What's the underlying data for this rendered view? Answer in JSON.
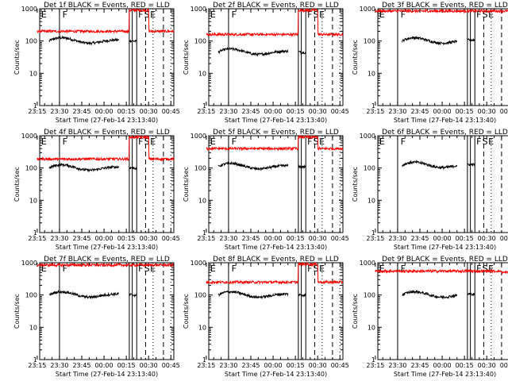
{
  "figure": {
    "x_tick_labels": [
      "23:15",
      "23:30",
      "23:45",
      "00:00",
      "00:15",
      "00:30",
      "00:45"
    ],
    "y_tick_labels": [
      "1",
      "10",
      "100",
      "1000"
    ],
    "x_label": "Start Time (27-Feb-14 23:13:40)",
    "y_label": "Counts/sec",
    "marker_labels": [
      "E",
      "F",
      "F",
      "S",
      "E"
    ],
    "colors": {
      "events": "#000000",
      "lld": "#ff0000",
      "axes": "#000000"
    }
  },
  "chart_data": [
    {
      "type": "line",
      "title": "Det 1f BLACK = Events, RED = LLD",
      "ylim": [
        1,
        1000
      ],
      "yscale": "log",
      "x_range_min": [
        1.67,
        92
      ],
      "series": [
        {
          "role": "events",
          "level": 100,
          "start": 8,
          "end": 67,
          "gap": [
            55,
            62
          ]
        },
        {
          "role": "lld",
          "level": 200,
          "start": 0,
          "end": 92,
          "burst": [
            62,
            75,
            900
          ]
        }
      ]
    },
    {
      "type": "line",
      "title": "Det 2f BLACK = Events, RED = LLD",
      "ylim": [
        1,
        1000
      ],
      "yscale": "log",
      "x_range_min": [
        1.67,
        92
      ],
      "series": [
        {
          "role": "events",
          "level": 45,
          "start": 8,
          "end": 67,
          "gap": [
            55,
            62
          ]
        },
        {
          "role": "lld",
          "level": 160,
          "start": 0,
          "end": 92,
          "burst": [
            62,
            75,
            900
          ]
        }
      ]
    },
    {
      "type": "line",
      "title": "Det 3f BLACK = Events, RED = LLD",
      "ylim": [
        1,
        1000
      ],
      "yscale": "log",
      "x_range_min": [
        1.67,
        92
      ],
      "series": [
        {
          "role": "events",
          "level": 100,
          "start": 18,
          "end": 67,
          "gap": [
            55,
            62
          ]
        },
        {
          "role": "lld",
          "level": 850,
          "start": 0,
          "end": 92
        }
      ]
    },
    {
      "type": "line",
      "title": "Det 4f BLACK = Events, RED = LLD",
      "ylim": [
        1,
        1000
      ],
      "yscale": "log",
      "x_range_min": [
        1.67,
        92
      ],
      "series": [
        {
          "role": "events",
          "level": 100,
          "start": 8,
          "end": 67,
          "gap": [
            55,
            62
          ]
        },
        {
          "role": "lld",
          "level": 190,
          "start": 0,
          "end": 92,
          "burst": [
            62,
            75,
            900
          ]
        }
      ]
    },
    {
      "type": "line",
      "title": "Det 5f BLACK = Events, RED = LLD",
      "ylim": [
        1,
        1000
      ],
      "yscale": "log",
      "x_range_min": [
        1.67,
        92
      ],
      "series": [
        {
          "role": "events",
          "level": 110,
          "start": 8,
          "end": 67,
          "gap": [
            55,
            62
          ]
        },
        {
          "role": "lld",
          "level": 400,
          "start": 0,
          "end": 92,
          "burst": [
            62,
            75,
            900
          ]
        }
      ]
    },
    {
      "type": "line",
      "title": "Det 6f BLACK = Events, RED = LLD",
      "ylim": [
        1,
        1000
      ],
      "yscale": "log",
      "x_range_min": [
        1.67,
        92
      ],
      "series": [
        {
          "role": "events",
          "level": 120,
          "start": 18,
          "end": 67,
          "gap": [
            55,
            62
          ]
        }
      ]
    },
    {
      "type": "line",
      "title": "Det 7f BLACK = Events, RED = LLD",
      "ylim": [
        1,
        1000
      ],
      "yscale": "log",
      "x_range_min": [
        1.67,
        92
      ],
      "series": [
        {
          "role": "events",
          "level": 100,
          "start": 8,
          "end": 67,
          "gap": [
            55,
            62
          ]
        },
        {
          "role": "lld",
          "level": 850,
          "start": 0,
          "end": 92
        }
      ]
    },
    {
      "type": "line",
      "title": "Det 8f BLACK = Events, RED = LLD",
      "ylim": [
        1,
        1000
      ],
      "yscale": "log",
      "x_range_min": [
        1.67,
        92
      ],
      "series": [
        {
          "role": "events",
          "level": 100,
          "start": 8,
          "end": 67,
          "gap": [
            55,
            62
          ]
        },
        {
          "role": "lld",
          "level": 250,
          "start": 0,
          "end": 92,
          "burst": [
            62,
            75,
            900
          ]
        }
      ]
    },
    {
      "type": "line",
      "title": "Det 9f BLACK = Events, RED = LLD",
      "ylim": [
        1,
        1000
      ],
      "yscale": "log",
      "x_range_min": [
        1.67,
        92
      ],
      "series": [
        {
          "role": "events",
          "level": 100,
          "start": 18,
          "end": 67,
          "gap": [
            55,
            62
          ]
        },
        {
          "role": "lld",
          "level": 550,
          "start": 0,
          "end": 92,
          "burst": [
            85,
            92,
            500
          ]
        }
      ]
    }
  ]
}
